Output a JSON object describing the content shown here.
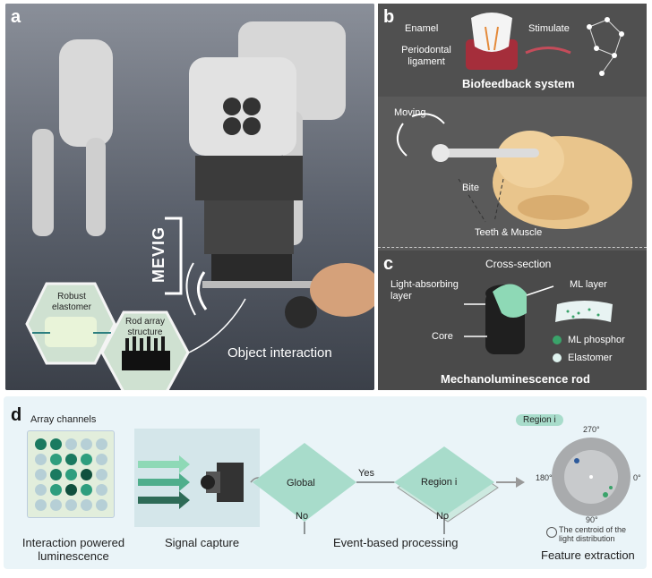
{
  "panel_a": {
    "label": "a",
    "mevig": "MEVIG",
    "robust_elastomer": "Robust elastomer",
    "rod_array": "Rod array structure",
    "object_interaction": "Object interaction"
  },
  "panel_b": {
    "label": "b",
    "enamel": "Enamel",
    "periodontal": "Periodontal ligament",
    "stimulate": "Stimulate",
    "title": "Biofeedback system",
    "moving": "Moving",
    "bite": "Bite",
    "teeth_muscle": "Teeth & Muscle"
  },
  "panel_c": {
    "label": "c",
    "cross_section": "Cross-section",
    "light_absorbing": "Light-absorbing layer",
    "ml_layer": "ML layer",
    "core": "Core",
    "ml_phosphor": "ML phosphor",
    "elastomer": "Elastomer",
    "title": "Mechanoluminescence rod",
    "colors": {
      "phosphor": "#3aa36a",
      "elastomer": "#dff3ef"
    }
  },
  "panel_d": {
    "label": "d",
    "array_channels": "Array channels",
    "interaction_powered": "Interaction powered luminescence",
    "signal_capture": "Signal capture",
    "global": "Global",
    "yes": "Yes",
    "region_i": "Region i",
    "no_1": "No",
    "no_2": "No",
    "event_processing": "Event-based processing",
    "region_tag": "Region i",
    "angle_270": "270°",
    "angle_180": "180°",
    "angle_0": "0°",
    "angle_90": "90°",
    "centroid_note": "The centroid of the light distribution",
    "feature_extraction": "Feature extraction",
    "grid_levels": [
      [
        2,
        2,
        0,
        0,
        0
      ],
      [
        0,
        1,
        2,
        1,
        0
      ],
      [
        0,
        2,
        1,
        3,
        0
      ],
      [
        0,
        1,
        3,
        1,
        0
      ],
      [
        0,
        0,
        0,
        0,
        0
      ]
    ],
    "grid_colors": [
      "#b6cfd6",
      "#2e9e7e",
      "#1b7a60",
      "#10503e"
    ]
  }
}
